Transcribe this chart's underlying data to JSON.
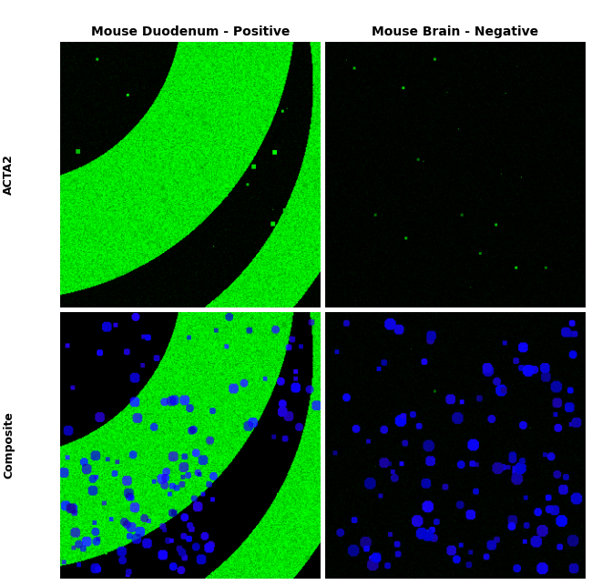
{
  "title_top_left": "Mouse Duodenum - Positive",
  "title_top_right": "Mouse Brain - Negative",
  "label_left_top": "ACTA2",
  "label_left_bottom": "Composite",
  "bg_color": "#ffffff",
  "title_fontsize": 10,
  "label_fontsize": 9,
  "fig_width": 6.5,
  "fig_height": 6.43
}
